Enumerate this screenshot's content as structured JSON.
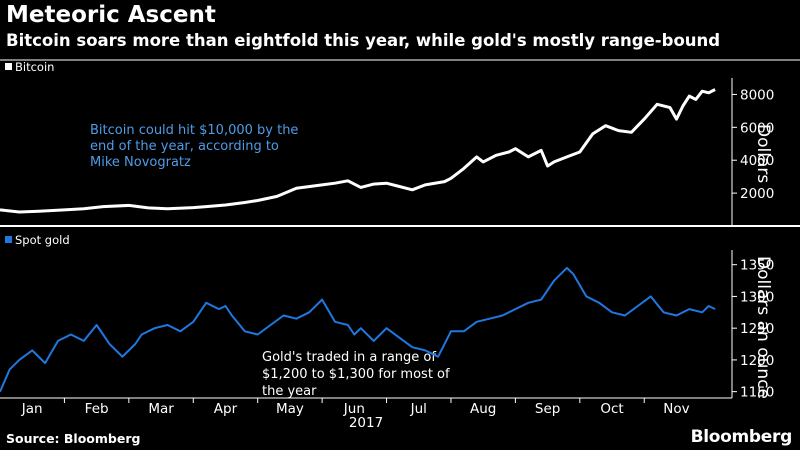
{
  "header": {
    "title": "Meteoric Ascent",
    "subtitle": "Bitcoin soars more than eightfold this year, while gold's mostly range-bound"
  },
  "footer": {
    "source": "Source: Bloomberg",
    "brand": "Bloomberg"
  },
  "colors": {
    "background": "#000000",
    "bitcoin_line": "#ffffff",
    "gold_line": "#1f78e0",
    "annotation_blue": "#4f9ce8",
    "annotation_white": "#ffffff",
    "axis": "#ffffff"
  },
  "chart_data": [
    {
      "type": "line",
      "series": [
        {
          "name": "Bitcoin",
          "x": [
            0,
            0.3,
            0.6,
            1,
            1.3,
            1.6,
            2,
            2.3,
            2.6,
            3,
            3.2,
            3.5,
            3.8,
            4,
            4.3,
            4.6,
            5,
            5.2,
            5.4,
            5.6,
            5.8,
            6,
            6.2,
            6.4,
            6.6,
            6.9,
            7,
            7.2,
            7.4,
            7.5,
            7.7,
            7.9,
            8,
            8.2,
            8.4,
            8.5,
            8.6,
            8.8,
            9,
            9.2,
            9.4,
            9.6,
            9.8,
            10,
            10.2,
            10.4,
            10.5,
            10.6,
            10.7,
            10.8,
            10.9,
            11,
            11.1
          ],
          "values": [
            980,
            850,
            900,
            980,
            1050,
            1180,
            1250,
            1100,
            1050,
            1120,
            1180,
            1280,
            1430,
            1550,
            1800,
            2300,
            2500,
            2600,
            2750,
            2350,
            2550,
            2600,
            2400,
            2200,
            2500,
            2700,
            2900,
            3500,
            4200,
            3900,
            4300,
            4500,
            4700,
            4200,
            4600,
            3650,
            3900,
            4200,
            4500,
            5600,
            6100,
            5800,
            5700,
            6500,
            7400,
            7200,
            6500,
            7300,
            7900,
            7700,
            8200,
            8100,
            8300
          ]
        }
      ],
      "xlim": [
        0,
        11.3
      ],
      "ylim": [
        0,
        9000
      ],
      "yticks": [
        2000,
        4000,
        6000,
        8000
      ],
      "ytick_labels": [
        "2000",
        "4000",
        "6000",
        "8000"
      ],
      "ylabel": "Dollars",
      "legend": "Bitcoin",
      "annotation": "Bitcoin could hit $10,000 by the end of the year, according to Mike Novogratz"
    },
    {
      "type": "line",
      "series": [
        {
          "name": "Spot gold",
          "x": [
            0,
            0.15,
            0.3,
            0.5,
            0.7,
            0.9,
            1.1,
            1.3,
            1.5,
            1.6,
            1.7,
            1.9,
            2.1,
            2.2,
            2.4,
            2.6,
            2.8,
            3,
            3.2,
            3.4,
            3.5,
            3.6,
            3.8,
            4,
            4.2,
            4.4,
            4.6,
            4.8,
            5,
            5.2,
            5.4,
            5.5,
            5.6,
            5.8,
            6,
            6.2,
            6.4,
            6.6,
            6.8,
            7,
            7.2,
            7.4,
            7.6,
            7.8,
            8,
            8.2,
            8.4,
            8.6,
            8.8,
            8.9,
            9.1,
            9.3,
            9.5,
            9.7,
            9.9,
            10.1,
            10.3,
            10.5,
            10.7,
            10.9,
            11,
            11.1
          ],
          "values": [
            1150,
            1185,
            1200,
            1215,
            1195,
            1230,
            1240,
            1230,
            1255,
            1240,
            1225,
            1205,
            1225,
            1240,
            1250,
            1255,
            1245,
            1260,
            1290,
            1280,
            1285,
            1270,
            1245,
            1240,
            1255,
            1270,
            1265,
            1275,
            1295,
            1260,
            1255,
            1240,
            1250,
            1230,
            1250,
            1235,
            1220,
            1215,
            1205,
            1245,
            1245,
            1260,
            1265,
            1270,
            1280,
            1290,
            1295,
            1325,
            1345,
            1335,
            1300,
            1290,
            1275,
            1270,
            1285,
            1300,
            1275,
            1270,
            1280,
            1275,
            1285,
            1280
          ]
        }
      ],
      "xlim": [
        0,
        11.3
      ],
      "ylim": [
        1140,
        1370
      ],
      "yticks": [
        1150,
        1200,
        1250,
        1300,
        1350
      ],
      "ytick_labels": [
        "1150",
        "1200",
        "1250",
        "1300",
        "1350"
      ],
      "ylabel": "Dollars an ounce",
      "legend": "Spot gold",
      "annotation": "Gold's traded in a range of $1,200 to $1,300 for most of the year"
    }
  ],
  "x_axis": {
    "tick_labels": [
      "Jan",
      "Feb",
      "Mar",
      "Apr",
      "May",
      "Jun",
      "Jul",
      "Aug",
      "Sep",
      "Oct",
      "Nov"
    ],
    "year_label": "2017"
  }
}
